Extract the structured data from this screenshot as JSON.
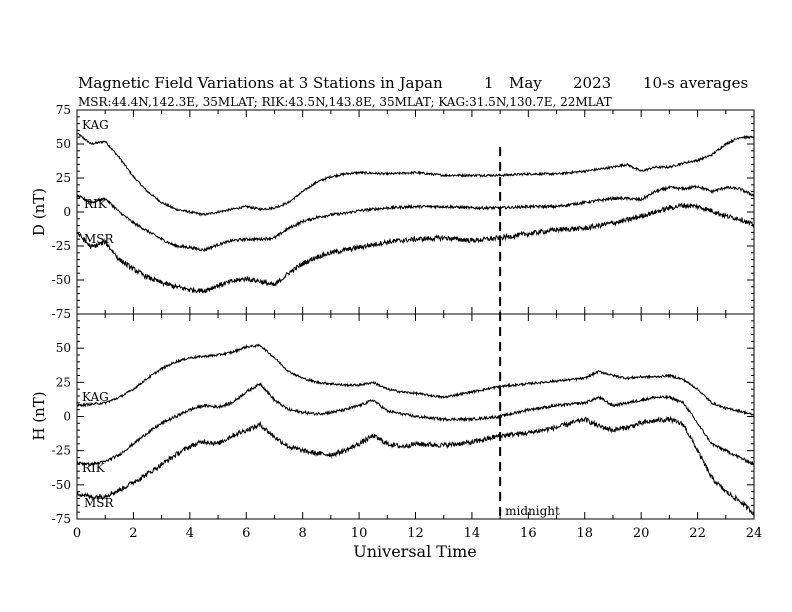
{
  "header": {
    "title": "Magnetic Field Variations at 3 Stations in Japan",
    "day": "1",
    "month": "May",
    "year": "2023",
    "averaging": "10-s averages",
    "stations_line": "MSR:44.4N,142.3E, 35MLAT;  RIK:43.5N,143.8E, 35MLAT;  KAG:31.5N,130.7E, 22MLAT"
  },
  "chart_data": [
    {
      "type": "line",
      "panel": "D",
      "ylabel": "D (nT)",
      "ylim": [
        -75,
        75
      ],
      "yticks": [
        75,
        50,
        25,
        0,
        -25,
        -50,
        -75
      ],
      "xlim": [
        0,
        24
      ],
      "series": [
        {
          "name": "KAG",
          "x": [
            0,
            0.5,
            1,
            1.5,
            2,
            2.5,
            3,
            3.5,
            4,
            4.5,
            5,
            5.5,
            6,
            6.5,
            7,
            7.5,
            8,
            8.5,
            9,
            9.5,
            10,
            11,
            12,
            13,
            14,
            15,
            16,
            17,
            18,
            19,
            19.5,
            20,
            20.5,
            21,
            21.5,
            22,
            22.5,
            23,
            23.5,
            24
          ],
          "values": [
            58,
            50,
            52,
            40,
            26,
            15,
            7,
            2,
            0,
            -2,
            0,
            2,
            4,
            2,
            3,
            7,
            15,
            22,
            26,
            28,
            29,
            28,
            29,
            27,
            27,
            27,
            28,
            28,
            30,
            33,
            35,
            30,
            33,
            33,
            36,
            38,
            42,
            50,
            55,
            55
          ]
        },
        {
          "name": "RIK",
          "x": [
            0,
            0.5,
            1,
            1.5,
            2,
            2.5,
            3,
            3.5,
            4,
            4.5,
            5,
            5.5,
            6,
            6.5,
            7,
            7.5,
            8,
            8.5,
            9,
            9.5,
            10,
            11,
            12,
            13,
            14,
            15,
            16,
            17,
            18,
            19,
            19.5,
            20,
            20.5,
            21,
            21.5,
            22,
            22.5,
            23,
            23.5,
            24
          ],
          "values": [
            12,
            7,
            10,
            0,
            -8,
            -14,
            -20,
            -25,
            -26,
            -28,
            -24,
            -21,
            -20,
            -20,
            -19,
            -12,
            -7,
            -4,
            -2,
            -1,
            1,
            3,
            4,
            4,
            3,
            3,
            4,
            4,
            7,
            10,
            10,
            9,
            15,
            18,
            17,
            19,
            15,
            18,
            17,
            12
          ]
        },
        {
          "name": "MSR",
          "x": [
            0,
            0.5,
            1,
            1.5,
            2,
            2.5,
            3,
            3.5,
            4,
            4.5,
            5,
            5.5,
            6,
            6.5,
            7,
            7.5,
            8,
            8.5,
            9,
            9.5,
            10,
            11,
            12,
            13,
            14,
            15,
            16,
            17,
            18,
            19,
            19.5,
            20,
            20.5,
            21,
            21.5,
            22,
            22.5,
            23,
            23.5,
            24
          ],
          "values": [
            -15,
            -26,
            -22,
            -35,
            -42,
            -48,
            -52,
            -55,
            -57,
            -58,
            -54,
            -51,
            -49,
            -51,
            -54,
            -45,
            -38,
            -33,
            -30,
            -28,
            -26,
            -22,
            -20,
            -19,
            -21,
            -19,
            -16,
            -13,
            -12,
            -8,
            -6,
            -3,
            0,
            3,
            5,
            4,
            1,
            -3,
            -5,
            -10
          ]
        }
      ]
    },
    {
      "type": "line",
      "panel": "H",
      "ylabel": "H (nT)",
      "xlabel": "Universal Time",
      "ylim": [
        -75,
        75
      ],
      "yticks": [
        50,
        25,
        0,
        -25,
        -50,
        -75
      ],
      "xlim": [
        0,
        24
      ],
      "xticks": [
        0,
        2,
        4,
        6,
        8,
        10,
        12,
        14,
        16,
        18,
        20,
        22,
        24
      ],
      "series": [
        {
          "name": "KAG",
          "x": [
            0,
            0.5,
            1,
            1.5,
            2,
            2.5,
            3,
            3.5,
            4,
            4.5,
            5,
            5.5,
            6,
            6.5,
            7,
            7.5,
            8,
            8.5,
            9,
            9.5,
            10,
            10.5,
            11,
            11.5,
            12,
            13,
            14,
            15,
            16,
            17,
            18,
            18.5,
            19,
            19.5,
            20,
            20.5,
            21,
            21.5,
            22,
            22.5,
            23,
            23.5,
            24
          ],
          "values": [
            8,
            9,
            10,
            14,
            20,
            28,
            35,
            40,
            43,
            44,
            45,
            47,
            51,
            52,
            43,
            33,
            28,
            25,
            24,
            23,
            23,
            25,
            20,
            18,
            17,
            14,
            18,
            22,
            24,
            26,
            28,
            33,
            30,
            28,
            29,
            29,
            30,
            27,
            20,
            10,
            6,
            4,
            1
          ]
        },
        {
          "name": "RIK",
          "x": [
            0,
            0.5,
            1,
            1.5,
            2,
            2.5,
            3,
            3.5,
            4,
            4.5,
            5,
            5.5,
            6,
            6.5,
            7,
            7.5,
            8,
            8.5,
            9,
            9.5,
            10,
            10.5,
            11,
            11.5,
            12,
            13,
            14,
            15,
            16,
            17,
            18,
            18.5,
            19,
            19.5,
            20,
            20.5,
            21,
            21.5,
            22,
            22.5,
            23,
            23.5,
            24
          ],
          "values": [
            -34,
            -35,
            -33,
            -28,
            -20,
            -12,
            -5,
            0,
            5,
            8,
            7,
            10,
            18,
            24,
            12,
            5,
            3,
            2,
            3,
            5,
            8,
            12,
            4,
            2,
            0,
            -2,
            -2,
            0,
            5,
            8,
            10,
            14,
            8,
            10,
            12,
            14,
            14,
            10,
            -5,
            -20,
            -25,
            -30,
            -35
          ]
        },
        {
          "name": "MSR",
          "x": [
            0,
            0.5,
            1,
            1.5,
            2,
            2.5,
            3,
            3.5,
            4,
            4.5,
            5,
            5.5,
            6,
            6.5,
            7,
            7.5,
            8,
            8.5,
            9,
            9.5,
            10,
            10.5,
            11,
            11.5,
            12,
            13,
            14,
            15,
            16,
            17,
            18,
            18.5,
            19,
            19.5,
            20,
            20.5,
            21,
            21.5,
            22,
            22.5,
            23,
            23.5,
            24
          ],
          "values": [
            -56,
            -59,
            -58,
            -54,
            -48,
            -42,
            -35,
            -28,
            -22,
            -18,
            -20,
            -14,
            -10,
            -6,
            -15,
            -22,
            -25,
            -27,
            -28,
            -25,
            -20,
            -14,
            -20,
            -22,
            -20,
            -21,
            -19,
            -14,
            -12,
            -8,
            -2,
            -7,
            -10,
            -8,
            -5,
            -3,
            -2,
            -6,
            -25,
            -45,
            -55,
            -62,
            -71
          ]
        }
      ]
    }
  ],
  "annotation": {
    "midnight_label": "midnight",
    "midnight_ut": 15
  }
}
